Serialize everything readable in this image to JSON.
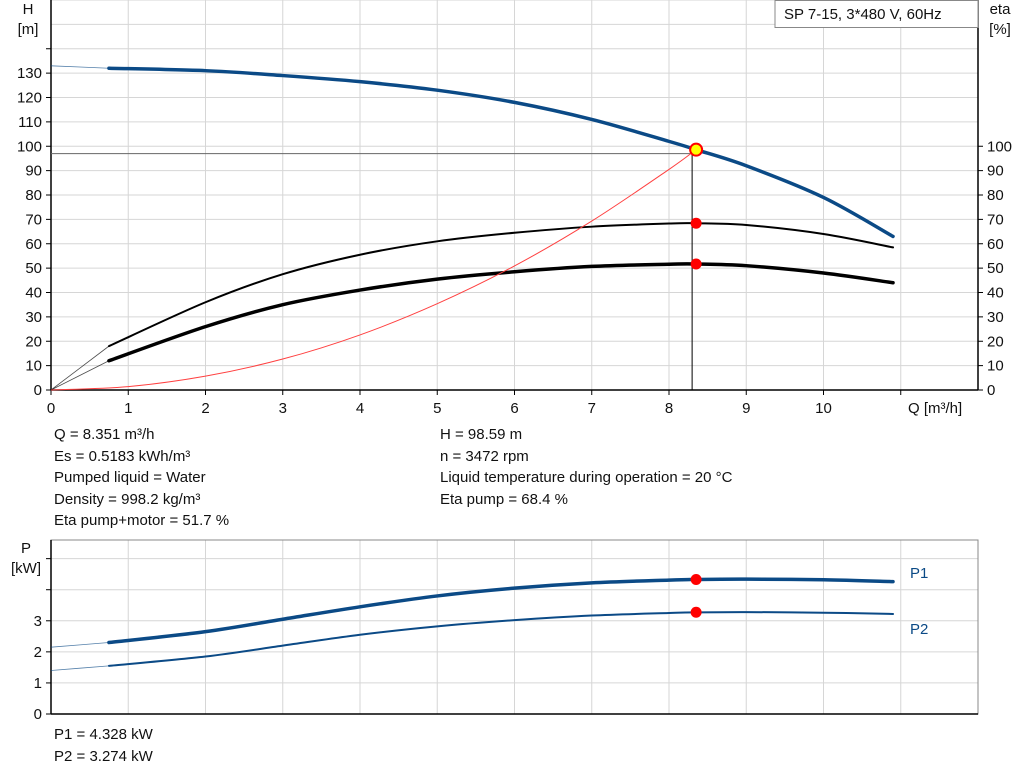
{
  "chart_data": [
    {
      "type": "line",
      "title": "SP 7-15, 3*480 V, 60Hz",
      "xlabel": "Q [m³/h]",
      "ylabel_left": [
        "H",
        "[m]"
      ],
      "ylabel_right": [
        "eta",
        "[%]"
      ],
      "xlim": [
        0,
        12
      ],
      "ylim_left": [
        0,
        160
      ],
      "ylim_right": [
        0,
        160
      ],
      "grid": true,
      "xticks": [
        "0",
        "1",
        "2",
        "3",
        "4",
        "5",
        "6",
        "7",
        "8",
        "9",
        "10"
      ],
      "yticks_left": [
        "0",
        "10",
        "20",
        "30",
        "40",
        "50",
        "60",
        "70",
        "80",
        "90",
        "100",
        "110",
        "120",
        "130"
      ],
      "yticks_right": [
        "0",
        "10",
        "20",
        "30",
        "40",
        "50",
        "60",
        "70",
        "80",
        "90",
        "100"
      ],
      "operating_point": {
        "Q": 8.351,
        "H": 98.59,
        "eta_pump": 68.4,
        "eta_total": 51.7
      },
      "series": [
        {
          "key": "H",
          "color": "#0b4a86",
          "thin_until": 0.75,
          "x": [
            0,
            0.75,
            2,
            3,
            4,
            5,
            6,
            7,
            8,
            8.35,
            9,
            10,
            10.9
          ],
          "y": [
            133,
            132,
            131,
            129,
            126.5,
            123,
            118,
            111,
            102,
            98.6,
            92,
            79,
            63
          ]
        },
        {
          "key": "eta_pump",
          "color": "#000000",
          "thin_until": 0.75,
          "x": [
            0,
            0.75,
            2,
            3,
            4,
            5,
            6,
            7,
            8,
            8.35,
            9,
            10,
            10.9
          ],
          "y": [
            0,
            18,
            36,
            47.5,
            55.5,
            61,
            64.5,
            67,
            68.3,
            68.4,
            67.7,
            64,
            58.5
          ]
        },
        {
          "key": "eta_total",
          "color": "#000000",
          "thin_until": 0.75,
          "x": [
            0,
            0.75,
            2,
            3,
            4,
            5,
            6,
            7,
            8,
            8.35,
            9,
            10,
            10.9
          ],
          "y": [
            0,
            12,
            26,
            35,
            41,
            45.5,
            48.5,
            50.7,
            51.6,
            51.7,
            51,
            48,
            44
          ]
        },
        {
          "key": "system",
          "color": "#ff4040",
          "x": [
            0,
            1,
            2,
            3,
            4,
            5,
            6,
            7,
            8,
            8.35
          ],
          "y": [
            0,
            1.4,
            5.7,
            12.7,
            22.6,
            35.4,
            50.9,
            69.3,
            90.5,
            98.6
          ]
        }
      ]
    },
    {
      "type": "line",
      "xlim": [
        0,
        12
      ],
      "ylim": [
        0,
        5.6
      ],
      "ylabel": [
        "P",
        "[kW]"
      ],
      "grid": true,
      "yticks": [
        "0",
        "1",
        "2",
        "3"
      ],
      "operating_point": {
        "Q": 8.351,
        "P1": 4.328,
        "P2": 3.274
      },
      "series": [
        {
          "name": "P1",
          "color": "#0b4a86",
          "thin_until": 0.75,
          "x": [
            0,
            0.75,
            2,
            3,
            4,
            5,
            6,
            7,
            8,
            8.35,
            9,
            10,
            10.9
          ],
          "y": [
            2.15,
            2.3,
            2.65,
            3.05,
            3.45,
            3.8,
            4.05,
            4.22,
            4.31,
            4.33,
            4.34,
            4.32,
            4.26
          ]
        },
        {
          "name": "P2",
          "color": "#0b4a86",
          "thin_until": 0.75,
          "x": [
            0,
            0.75,
            2,
            3,
            4,
            5,
            6,
            7,
            8,
            8.35,
            9,
            10,
            10.9
          ],
          "y": [
            1.4,
            1.55,
            1.85,
            2.2,
            2.55,
            2.82,
            3.02,
            3.17,
            3.25,
            3.27,
            3.28,
            3.26,
            3.22
          ]
        }
      ]
    }
  ],
  "info": {
    "left": [
      "Q = 8.351 m³/h",
      "Es = 0.5183 kWh/m³",
      "Pumped liquid = Water",
      "Density = 998.2 kg/m³",
      "Eta pump+motor = 51.7 %"
    ],
    "right": [
      "H = 98.59 m",
      "n = 3472 rpm",
      "Liquid temperature during operation = 20 °C",
      "Eta pump = 68.4 %"
    ],
    "power": [
      "P1 = 4.328 kW",
      "P2 = 3.274 kW"
    ]
  }
}
